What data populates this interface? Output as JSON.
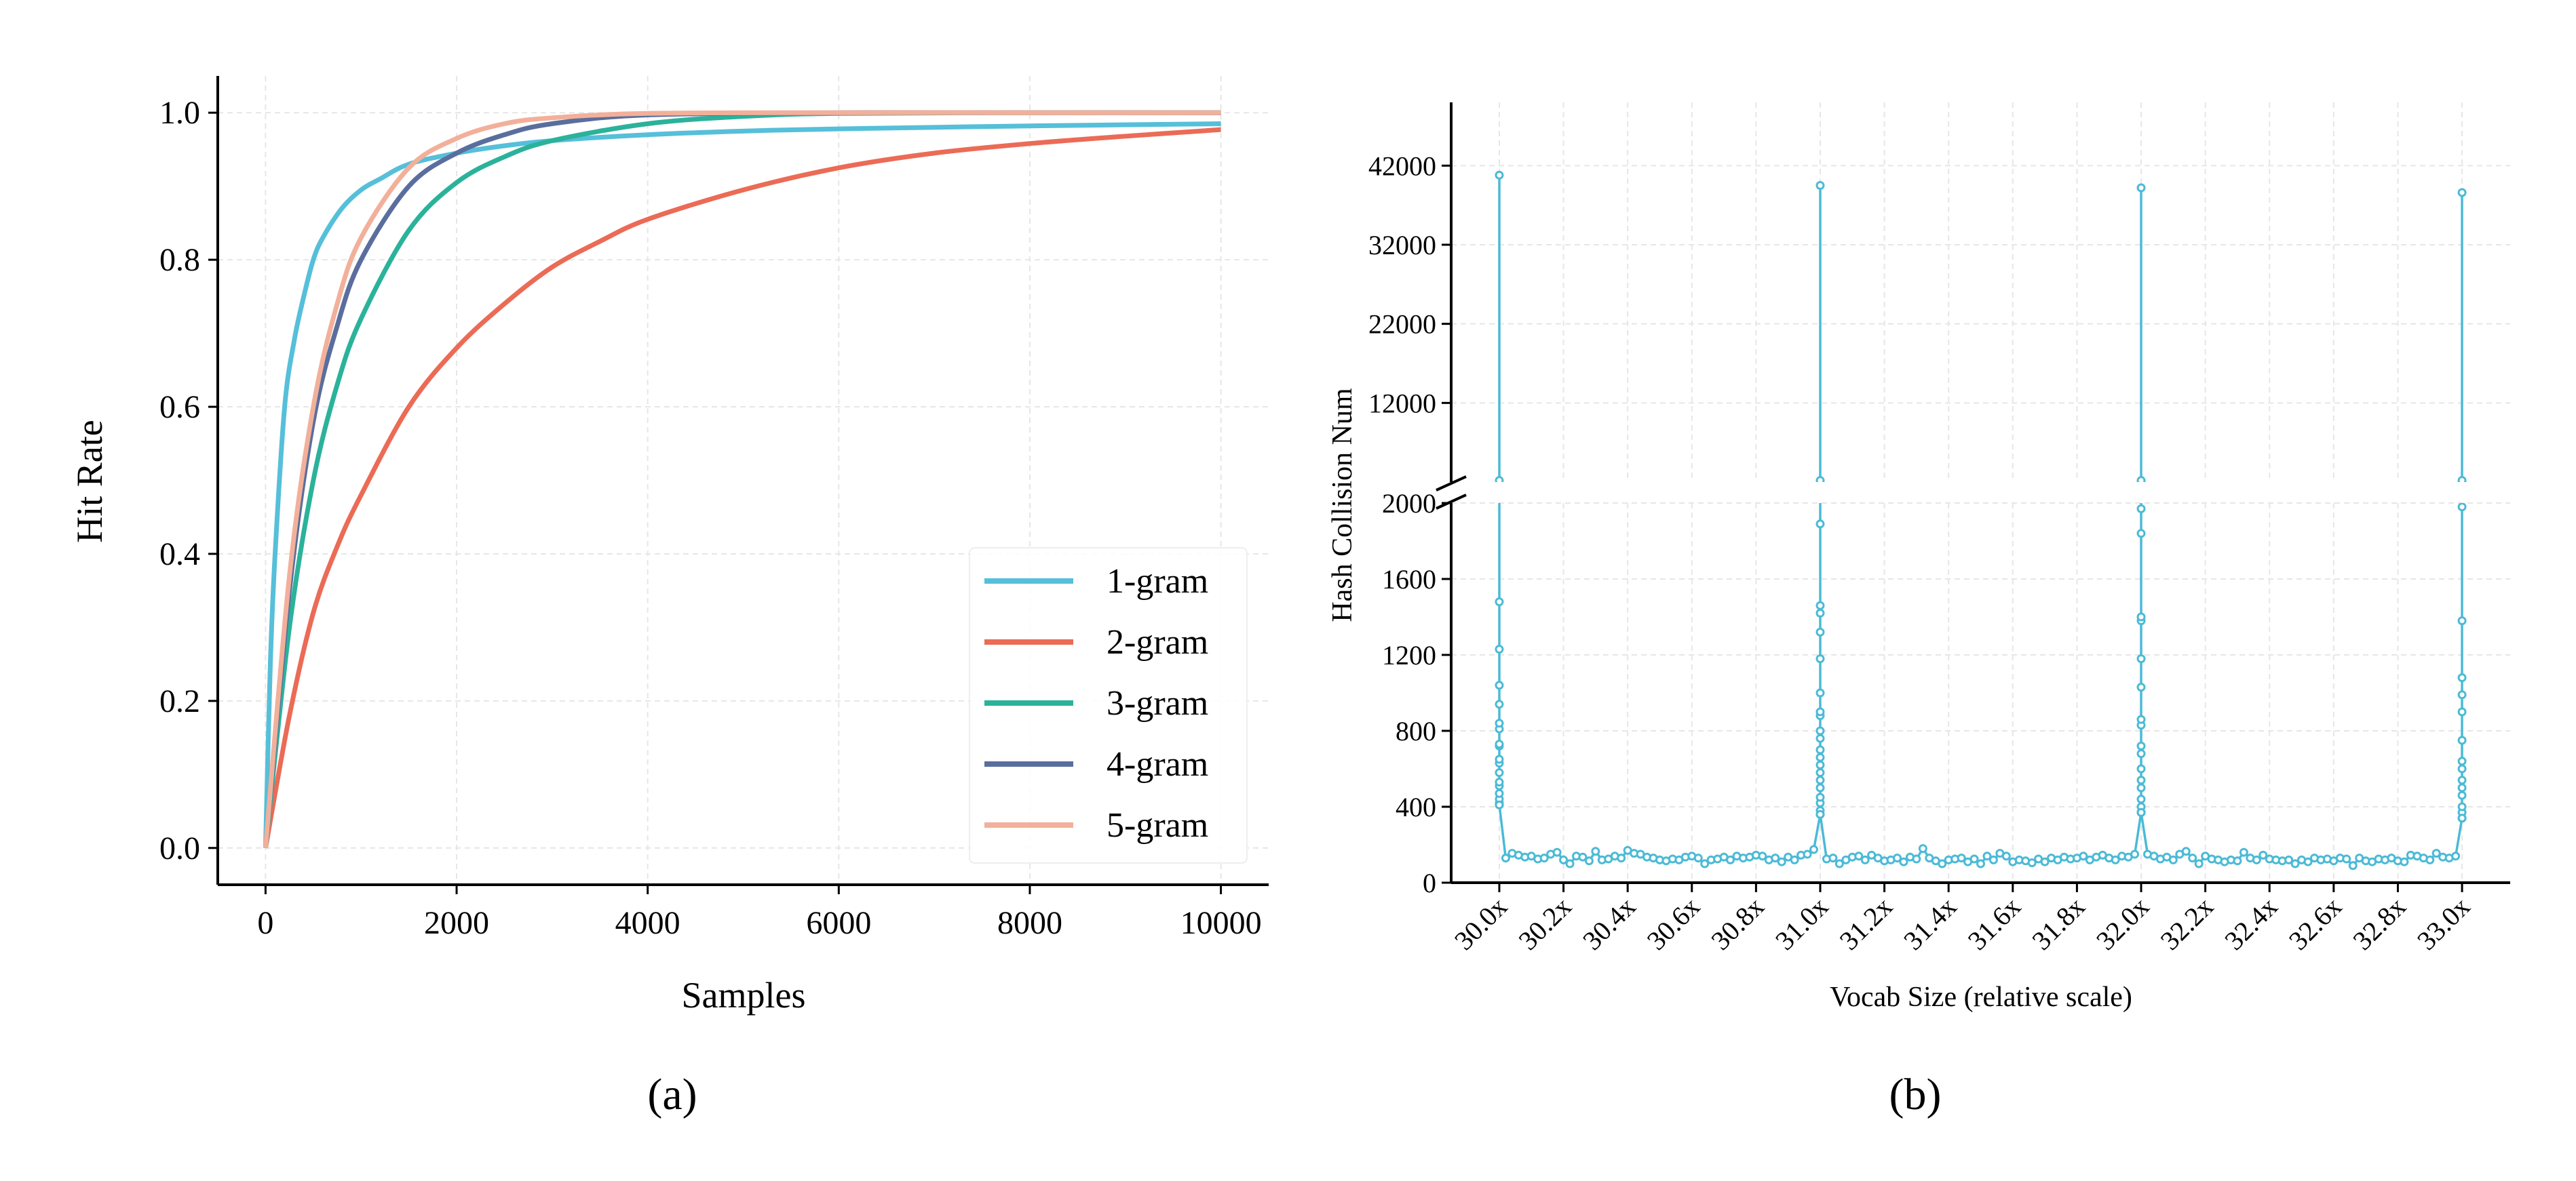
{
  "captions": {
    "a": "(a)",
    "b": "(b)"
  },
  "chart_data": [
    {
      "type": "line",
      "xlabel": "Samples",
      "ylabel": "Hit Rate",
      "xlim": [
        -500,
        10500
      ],
      "ylim": [
        -0.05,
        1.05
      ],
      "xticks": [
        0,
        2000,
        4000,
        6000,
        8000,
        10000
      ],
      "yticks": [
        "0.0",
        "0.2",
        "0.4",
        "0.6",
        "0.8",
        "1.0"
      ],
      "grid": true,
      "legend_position": "lower-right",
      "series": [
        {
          "name": "1-gram",
          "color": "#56bfd9",
          "x": [
            0,
            50,
            100,
            200,
            300,
            400,
            500,
            600,
            800,
            1000,
            1200,
            1500,
            2000,
            2500,
            3000,
            4000,
            5000,
            6000,
            8000,
            10000
          ],
          "y": [
            0,
            0.25,
            0.4,
            0.6,
            0.69,
            0.75,
            0.8,
            0.83,
            0.87,
            0.895,
            0.91,
            0.93,
            0.945,
            0.955,
            0.962,
            0.97,
            0.975,
            0.978,
            0.982,
            0.985
          ]
        },
        {
          "name": "2-gram",
          "color": "#eb6b56",
          "x": [
            0,
            250,
            500,
            750,
            1000,
            1500,
            2000,
            2500,
            3000,
            3500,
            4000,
            5000,
            6000,
            7000,
            8000,
            9000,
            10000
          ],
          "y": [
            0,
            0.18,
            0.32,
            0.41,
            0.48,
            0.6,
            0.68,
            0.74,
            0.79,
            0.825,
            0.855,
            0.895,
            0.925,
            0.945,
            0.958,
            0.968,
            0.977
          ]
        },
        {
          "name": "3-gram",
          "color": "#2bb29a",
          "x": [
            0,
            250,
            500,
            750,
            1000,
            1500,
            2000,
            2500,
            3000,
            4000,
            5000,
            6000,
            8000,
            10000
          ],
          "y": [
            0,
            0.3,
            0.5,
            0.63,
            0.72,
            0.84,
            0.905,
            0.94,
            0.962,
            0.985,
            0.995,
            0.999,
            1.0,
            1.0
          ]
        },
        {
          "name": "4-gram",
          "color": "#5a6e9e",
          "x": [
            0,
            250,
            500,
            750,
            1000,
            1500,
            2000,
            2500,
            3000,
            4000,
            6000,
            8000,
            10000
          ],
          "y": [
            0,
            0.35,
            0.58,
            0.71,
            0.8,
            0.9,
            0.945,
            0.97,
            0.985,
            0.997,
            1.0,
            1.0,
            1.0
          ]
        },
        {
          "name": "5-gram",
          "color": "#f2b09a",
          "x": [
            0,
            250,
            500,
            750,
            1000,
            1500,
            2000,
            2500,
            3000,
            4000,
            6000,
            8000,
            10000
          ],
          "y": [
            0,
            0.37,
            0.6,
            0.74,
            0.83,
            0.925,
            0.965,
            0.985,
            0.993,
            0.999,
            1.0,
            1.0,
            1.0
          ]
        }
      ]
    },
    {
      "type": "line",
      "xlabel": "Vocab Size (relative scale)",
      "ylabel": "Hash Collision Num",
      "xlim": [
        29.85,
        33.15
      ],
      "broken_y_axis": true,
      "ylim_upper": [
        2000,
        50000
      ],
      "ylim_lower": [
        0,
        2000
      ],
      "yticks_upper": [
        12000,
        22000,
        32000,
        42000
      ],
      "yticks_lower": [
        0,
        400,
        800,
        1200,
        1600,
        2000
      ],
      "xticks": [
        "30.0x",
        "30.2x",
        "30.4x",
        "30.6x",
        "30.8x",
        "31.0x",
        "31.2x",
        "31.4x",
        "31.6x",
        "31.8x",
        "32.0x",
        "32.2x",
        "32.4x",
        "32.6x",
        "32.8x",
        "33.0x"
      ],
      "xtick_values": [
        30.0,
        30.2,
        30.4,
        30.6,
        30.8,
        31.0,
        31.2,
        31.4,
        31.6,
        31.8,
        32.0,
        32.2,
        32.4,
        32.6,
        32.8,
        33.0
      ],
      "grid": true,
      "color": "#4bbad6",
      "marker": "open-circle",
      "baseline": {
        "x_start": 30.0,
        "x_step": 0.02,
        "values": [
          null,
          130,
          155,
          145,
          135,
          140,
          125,
          130,
          150,
          160,
          120,
          100,
          140,
          135,
          115,
          165,
          120,
          125,
          140,
          130,
          170,
          155,
          150,
          135,
          130,
          120,
          115,
          125,
          120,
          135,
          140,
          130,
          100,
          120,
          125,
          135,
          120,
          140,
          130,
          135,
          145,
          140,
          120,
          130,
          110,
          135,
          120,
          145,
          150,
          175,
          null,
          125,
          130,
          100,
          120,
          135,
          140,
          120,
          145,
          130,
          115,
          120,
          130,
          110,
          135,
          125,
          180,
          130,
          115,
          100,
          120,
          125,
          130,
          110,
          125,
          100,
          140,
          120,
          155,
          140,
          110,
          120,
          115,
          105,
          125,
          110,
          130,
          120,
          135,
          125,
          130,
          140,
          120,
          135,
          145,
          130,
          120,
          140,
          135,
          150,
          null,
          150,
          140,
          125,
          135,
          120,
          150,
          165,
          130,
          100,
          140,
          125,
          120,
          110,
          120,
          115,
          160,
          130,
          120,
          145,
          125,
          120,
          115,
          120,
          100,
          120,
          110,
          130,
          120,
          125,
          115,
          130,
          125,
          90,
          130,
          115,
          110,
          125,
          120,
          130,
          115,
          110,
          145,
          140,
          130,
          120,
          155,
          135,
          130,
          140,
          null
        ]
      },
      "spikes": [
        {
          "x": 30.0,
          "values": [
            40800,
            2200,
            1480,
            1230,
            1040,
            940,
            840,
            810,
            730,
            720,
            650,
            630,
            580,
            530,
            510,
            470,
            440,
            420,
            410
          ]
        },
        {
          "x": 31.0,
          "values": [
            39500,
            2200,
            1890,
            1460,
            1420,
            1320,
            1180,
            1000,
            900,
            880,
            800,
            760,
            700,
            660,
            620,
            580,
            540,
            500,
            450,
            420,
            380,
            360
          ]
        },
        {
          "x": 32.0,
          "values": [
            39200,
            2200,
            1970,
            1840,
            1400,
            1380,
            1180,
            1030,
            860,
            830,
            720,
            680,
            600,
            540,
            500,
            440,
            400,
            370
          ]
        },
        {
          "x": 33.0,
          "values": [
            38600,
            2200,
            1980,
            1380,
            1080,
            990,
            900,
            750,
            640,
            600,
            540,
            500,
            460,
            400,
            370,
            340
          ]
        }
      ]
    }
  ]
}
